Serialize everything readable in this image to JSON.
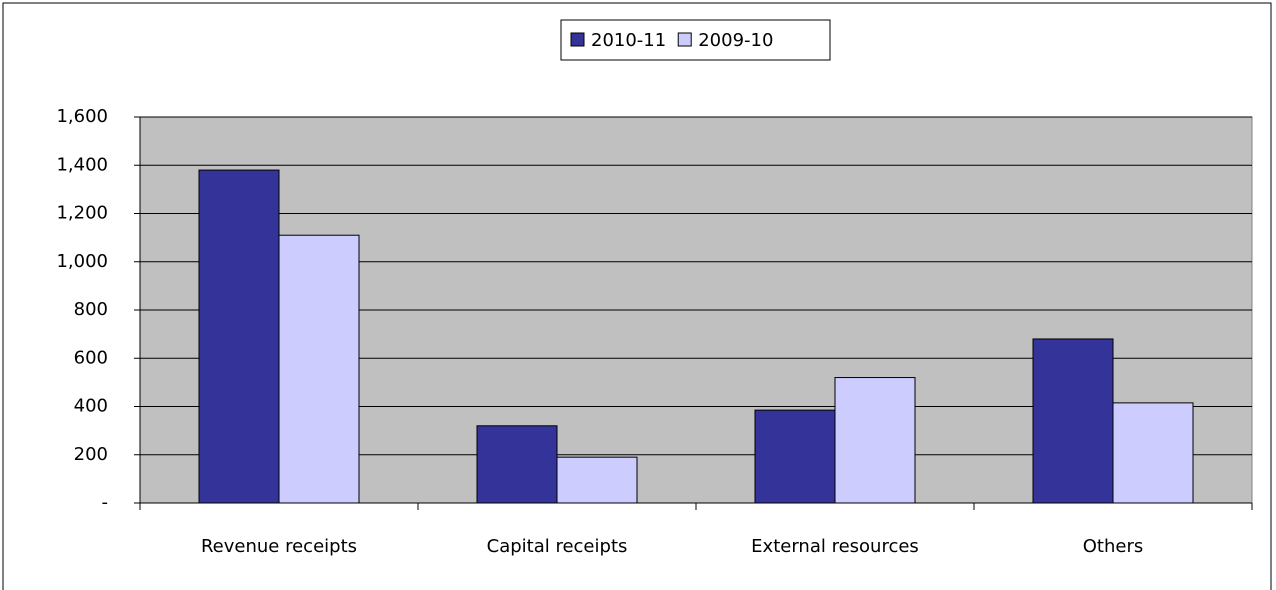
{
  "chart_data": {
    "type": "bar",
    "categories": [
      "Revenue receipts",
      "Capital receipts",
      "External resources",
      "Others"
    ],
    "series": [
      {
        "name": "2010-11",
        "color": "#333399",
        "values": [
          1380,
          320,
          385,
          680
        ]
      },
      {
        "name": "2009-10",
        "color": "#ccccff",
        "values": [
          1110,
          190,
          520,
          415
        ]
      }
    ],
    "ylim": [
      0,
      1600
    ],
    "yticks": [
      {
        "value": 0,
        "label": "-"
      },
      200,
      400,
      600,
      800,
      {
        "value": 1000,
        "label": "1,000"
      },
      {
        "value": 1200,
        "label": "1,200"
      },
      {
        "value": 1400,
        "label": "1,400"
      },
      {
        "value": 1600,
        "label": "1,600"
      }
    ],
    "grid": true,
    "legend": "top"
  }
}
